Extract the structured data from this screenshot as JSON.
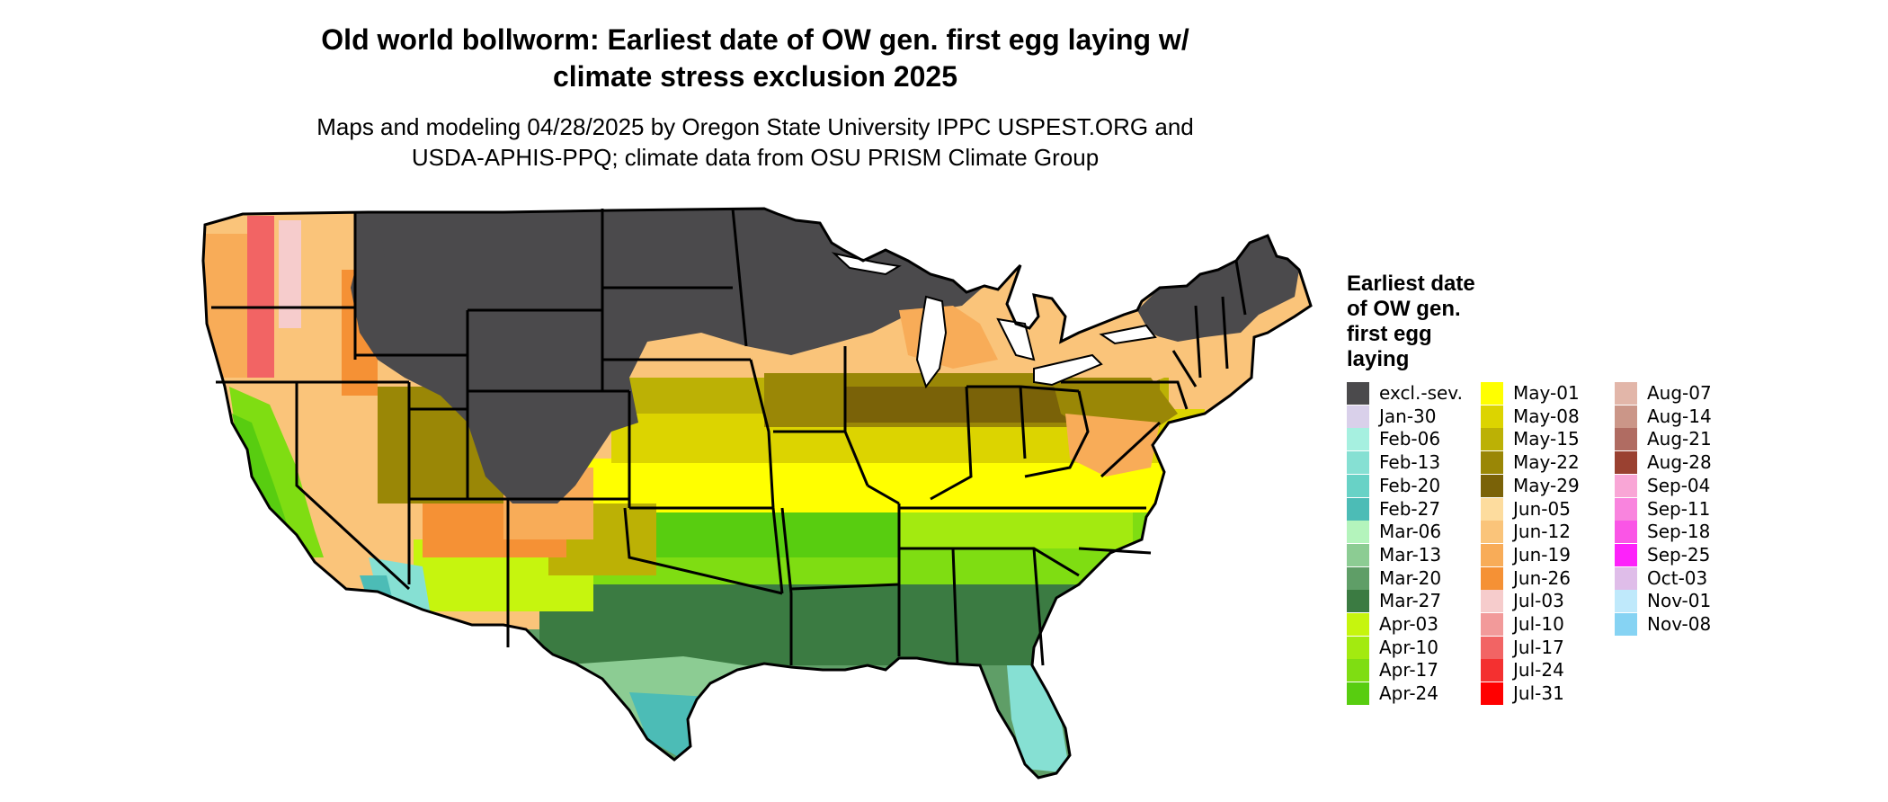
{
  "header": {
    "title_line1": "Old world bollworm: Earliest date of OW gen. first egg laying w/",
    "title_line2": "climate stress exclusion 2025",
    "subtitle_line1": "Maps and modeling 04/28/2025 by Oregon State University IPPC USPEST.ORG and",
    "subtitle_line2": "USDA-APHIS-PPQ; climate data from OSU PRISM Climate Group"
  },
  "map": {
    "region": "Contiguous United States",
    "colors": {
      "excluded": "#4b4a4c",
      "border": "#000000",
      "ocean": "#ffffff"
    }
  },
  "legend": {
    "title_lines": [
      "Earliest date",
      "of OW gen.",
      "first egg",
      "laying"
    ],
    "items": [
      {
        "label": "excl.-sev.",
        "color": "#4b4a4c"
      },
      {
        "label": "Jan-30",
        "color": "#d9d0ea"
      },
      {
        "label": "Feb-06",
        "color": "#a6f0e0"
      },
      {
        "label": "Feb-13",
        "color": "#86e0d3"
      },
      {
        "label": "Feb-20",
        "color": "#68d2c6"
      },
      {
        "label": "Feb-27",
        "color": "#4cbcb6"
      },
      {
        "label": "Mar-06",
        "color": "#b4f4bc"
      },
      {
        "label": "Mar-13",
        "color": "#8ccc93"
      },
      {
        "label": "Mar-20",
        "color": "#5f9e67"
      },
      {
        "label": "Mar-27",
        "color": "#3b7b42"
      },
      {
        "label": "Apr-03",
        "color": "#c6f50e"
      },
      {
        "label": "Apr-10",
        "color": "#a3ea10"
      },
      {
        "label": "Apr-17",
        "color": "#7fdd12"
      },
      {
        "label": "Apr-24",
        "color": "#58cd10"
      },
      {
        "label": "May-01",
        "color": "#ffff00"
      },
      {
        "label": "May-08",
        "color": "#dcd400"
      },
      {
        "label": "May-15",
        "color": "#bcb105"
      },
      {
        "label": "May-22",
        "color": "#9a8706"
      },
      {
        "label": "May-29",
        "color": "#7a6208"
      },
      {
        "label": "Jun-05",
        "color": "#fddc9e"
      },
      {
        "label": "Jun-12",
        "color": "#fac47a"
      },
      {
        "label": "Jun-19",
        "color": "#f8ac58"
      },
      {
        "label": "Jun-26",
        "color": "#f59135"
      },
      {
        "label": "Jul-03",
        "color": "#f6cccc"
      },
      {
        "label": "Jul-10",
        "color": "#f29a9a"
      },
      {
        "label": "Jul-17",
        "color": "#f26464"
      },
      {
        "label": "Jul-24",
        "color": "#f43030"
      },
      {
        "label": "Jul-31",
        "color": "#ff0000"
      },
      {
        "label": "Aug-07",
        "color": "#e2b6a9"
      },
      {
        "label": "Aug-14",
        "color": "#cb9688"
      },
      {
        "label": "Aug-21",
        "color": "#b06c62"
      },
      {
        "label": "Aug-28",
        "color": "#9a4131"
      },
      {
        "label": "Sep-04",
        "color": "#f9a6d6"
      },
      {
        "label": "Sep-11",
        "color": "#f984de"
      },
      {
        "label": "Sep-18",
        "color": "#fa55e6"
      },
      {
        "label": "Sep-25",
        "color": "#fd22fa"
      },
      {
        "label": "Oct-03",
        "color": "#dfbde9"
      },
      {
        "label": "Nov-01",
        "color": "#bfe9fb"
      },
      {
        "label": "Nov-08",
        "color": "#86d3f3"
      }
    ]
  }
}
